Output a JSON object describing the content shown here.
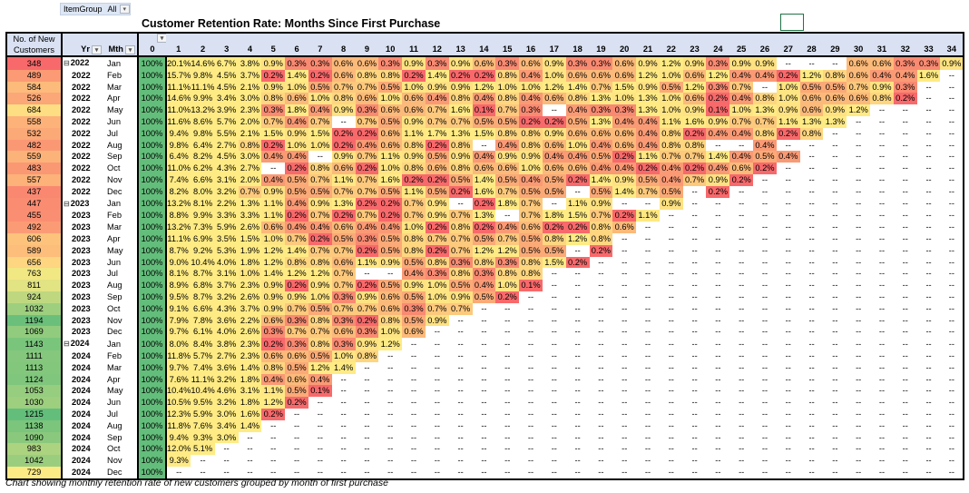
{
  "filter": {
    "label": "ItemGroup",
    "value": "All"
  },
  "title": "Customer Retention Rate: Months Since First Purchase",
  "headers": {
    "customers": "No. of New Customers",
    "yr": "Yr",
    "mth": "Mth",
    "months": [
      "0",
      "1",
      "2",
      "3",
      "4",
      "5",
      "6",
      "7",
      "8",
      "9",
      "10",
      "11",
      "12",
      "13",
      "14",
      "15",
      "16",
      "17",
      "18",
      "19",
      "20",
      "21",
      "22",
      "23",
      "24",
      "25",
      "26",
      "27",
      "28",
      "29",
      "30",
      "31",
      "32",
      "33",
      "34"
    ]
  },
  "empty_cell": "--",
  "colors": {
    "header_bg": "#d9e1f2",
    "month0": "#63be7b",
    "low": "#f8696b",
    "mid": "#ffeb84",
    "high": "#63be7b"
  },
  "rows": [
    {
      "customers": "348",
      "yr": "2022",
      "mth": "Jan",
      "expand": true,
      "values": [
        100,
        20.1,
        14.6,
        6.7,
        3.8,
        0.9,
        0.3,
        0.3,
        0.6,
        0.6,
        0.3,
        0.9,
        0.3,
        0.9,
        0.6,
        0.3,
        0.6,
        0.9,
        0.3,
        0.3,
        0.6,
        0.9,
        1.2,
        0.9,
        0.3,
        0.9,
        0.9,
        null,
        null,
        null,
        0.6,
        0.6,
        0.3,
        0.3,
        0.9
      ]
    },
    {
      "customers": "489",
      "yr": "2022",
      "mth": "Feb",
      "values": [
        100,
        15.7,
        9.8,
        4.5,
        3.7,
        0.2,
        1.4,
        0.2,
        0.6,
        0.8,
        0.8,
        0.2,
        1.4,
        0.2,
        0.2,
        0.8,
        0.4,
        1.0,
        0.6,
        0.6,
        0.6,
        1.2,
        1.0,
        0.6,
        1.2,
        0.4,
        0.4,
        0.2,
        1.2,
        0.8,
        0.6,
        0.4,
        0.4,
        1.6
      ]
    },
    {
      "customers": "584",
      "yr": "2022",
      "mth": "Mar",
      "values": [
        100,
        11.1,
        11.1,
        4.5,
        2.1,
        0.9,
        1.0,
        0.5,
        0.7,
        0.7,
        0.5,
        1.0,
        0.9,
        0.9,
        1.2,
        1.0,
        1.0,
        1.2,
        1.4,
        0.7,
        1.5,
        0.9,
        0.5,
        1.2,
        0.3,
        0.7,
        null,
        1.0,
        0.5,
        0.5,
        0.7,
        0.9,
        0.3
      ]
    },
    {
      "customers": "526",
      "yr": "2022",
      "mth": "Apr",
      "values": [
        100,
        14.6,
        9.9,
        3.4,
        3.0,
        0.8,
        0.6,
        1.0,
        0.8,
        0.6,
        1.0,
        0.6,
        0.4,
        0.8,
        0.4,
        0.8,
        0.4,
        0.6,
        0.8,
        1.3,
        1.0,
        1.3,
        1.0,
        0.6,
        0.2,
        0.4,
        0.8,
        1.0,
        0.6,
        0.6,
        0.6,
        0.8,
        0.2
      ]
    },
    {
      "customers": "684",
      "yr": "2022",
      "mth": "May",
      "values": [
        100,
        11.0,
        13.2,
        3.9,
        2.3,
        0.3,
        1.8,
        0.4,
        0.9,
        0.3,
        0.6,
        0.6,
        0.7,
        1.6,
        0.1,
        0.7,
        0.3,
        null,
        0.4,
        0.3,
        0.3,
        1.3,
        1.0,
        0.9,
        0.1,
        1.0,
        1.3,
        0.9,
        0.6,
        0.9,
        1.2
      ]
    },
    {
      "customers": "558",
      "yr": "2022",
      "mth": "Jun",
      "values": [
        100,
        11.6,
        8.6,
        5.7,
        2.0,
        0.7,
        0.4,
        0.7,
        null,
        0.7,
        0.5,
        0.9,
        0.7,
        0.7,
        0.5,
        0.5,
        0.2,
        0.2,
        0.5,
        1.3,
        0.4,
        0.4,
        1.1,
        1.6,
        0.9,
        0.7,
        0.7,
        1.1,
        1.3,
        1.3
      ]
    },
    {
      "customers": "532",
      "yr": "2022",
      "mth": "Jul",
      "values": [
        100,
        9.4,
        9.8,
        5.5,
        2.1,
        1.5,
        0.9,
        1.5,
        0.2,
        0.2,
        0.6,
        1.1,
        1.7,
        1.3,
        1.5,
        0.8,
        0.8,
        0.9,
        0.6,
        0.6,
        0.6,
        0.4,
        0.8,
        0.2,
        0.4,
        0.4,
        0.8,
        0.2,
        0.8
      ]
    },
    {
      "customers": "482",
      "yr": "2022",
      "mth": "Aug",
      "values": [
        100,
        9.8,
        6.4,
        2.7,
        0.8,
        0.2,
        1.0,
        1.0,
        0.2,
        0.4,
        0.6,
        0.8,
        0.2,
        0.8,
        null,
        0.4,
        0.8,
        0.6,
        1.0,
        0.4,
        0.6,
        0.4,
        0.8,
        0.8,
        null,
        null,
        0.4
      ]
    },
    {
      "customers": "559",
      "yr": "2022",
      "mth": "Sep",
      "values": [
        100,
        6.4,
        8.2,
        4.5,
        3.0,
        0.4,
        0.4,
        null,
        0.9,
        0.7,
        1.1,
        0.9,
        0.5,
        0.9,
        0.4,
        0.9,
        0.9,
        0.4,
        0.4,
        0.5,
        0.2,
        1.1,
        0.7,
        0.7,
        1.4,
        0.4,
        0.5,
        0.4
      ]
    },
    {
      "customers": "483",
      "yr": "2022",
      "mth": "Oct",
      "values": [
        100,
        11.0,
        6.2,
        4.3,
        2.7,
        null,
        0.2,
        0.8,
        0.6,
        0.2,
        1.0,
        0.8,
        0.6,
        0.8,
        0.6,
        0.6,
        1.0,
        0.6,
        0.6,
        0.4,
        0.4,
        0.2,
        0.4,
        0.2,
        0.4,
        0.6,
        0.2
      ]
    },
    {
      "customers": "557",
      "yr": "2022",
      "mth": "Nov",
      "values": [
        100,
        7.4,
        6.6,
        3.1,
        2.0,
        0.4,
        0.5,
        0.7,
        1.1,
        0.7,
        1.6,
        0.2,
        0.2,
        0.5,
        1.4,
        0.5,
        0.4,
        0.5,
        0.2,
        1.4,
        0.9,
        0.5,
        0.4,
        0.7,
        0.9,
        0.2
      ]
    },
    {
      "customers": "437",
      "yr": "2022",
      "mth": "Dec",
      "values": [
        100,
        8.2,
        8.0,
        3.2,
        0.7,
        0.9,
        0.5,
        0.5,
        0.7,
        0.7,
        0.5,
        1.1,
        0.5,
        0.2,
        1.6,
        0.7,
        0.5,
        0.5,
        null,
        0.5,
        1.4,
        0.7,
        0.5,
        null,
        0.2
      ]
    },
    {
      "customers": "447",
      "yr": "2023",
      "mth": "Jan",
      "expand": true,
      "values": [
        100,
        13.2,
        8.1,
        2.2,
        1.3,
        1.1,
        0.4,
        0.9,
        1.3,
        0.2,
        0.2,
        0.7,
        0.9,
        null,
        0.2,
        1.8,
        0.7,
        null,
        1.1,
        0.9,
        null,
        null,
        0.9
      ]
    },
    {
      "customers": "455",
      "yr": "2023",
      "mth": "Feb",
      "values": [
        100,
        8.8,
        9.9,
        3.3,
        3.3,
        1.1,
        0.2,
        0.7,
        0.2,
        0.7,
        0.2,
        0.7,
        0.9,
        0.7,
        1.3,
        null,
        0.7,
        1.8,
        1.5,
        0.7,
        0.2,
        1.1
      ]
    },
    {
      "customers": "492",
      "yr": "2023",
      "mth": "Mar",
      "values": [
        100,
        13.2,
        7.3,
        5.9,
        2.6,
        0.6,
        0.4,
        0.4,
        0.6,
        0.4,
        0.4,
        1.0,
        0.2,
        0.8,
        0.2,
        0.4,
        0.6,
        0.2,
        0.2,
        0.8,
        0.6
      ]
    },
    {
      "customers": "606",
      "yr": "2023",
      "mth": "Apr",
      "values": [
        100,
        11.1,
        6.9,
        3.5,
        1.5,
        1.0,
        0.7,
        0.2,
        0.5,
        0.3,
        0.5,
        0.8,
        0.7,
        0.7,
        0.5,
        0.7,
        0.5,
        0.8,
        1.2,
        0.8
      ]
    },
    {
      "customers": "589",
      "yr": "2023",
      "mth": "May",
      "values": [
        100,
        8.7,
        9.2,
        5.3,
        1.9,
        1.2,
        1.4,
        0.7,
        0.7,
        0.2,
        0.5,
        0.8,
        0.2,
        0.7,
        1.2,
        1.2,
        0.5,
        0.5,
        null,
        0.2
      ]
    },
    {
      "customers": "656",
      "yr": "2023",
      "mth": "Jun",
      "values": [
        100,
        9.0,
        10.4,
        4.0,
        1.8,
        1.2,
        0.8,
        0.8,
        0.6,
        1.1,
        0.9,
        0.5,
        0.8,
        0.3,
        0.8,
        0.3,
        0.8,
        1.5,
        0.2
      ]
    },
    {
      "customers": "763",
      "yr": "2023",
      "mth": "Jul",
      "values": [
        100,
        8.1,
        8.7,
        3.1,
        1.0,
        1.4,
        1.2,
        1.2,
        0.7,
        null,
        null,
        0.4,
        0.3,
        0.8,
        0.3,
        0.8,
        0.8
      ]
    },
    {
      "customers": "811",
      "yr": "2023",
      "mth": "Aug",
      "values": [
        100,
        8.9,
        6.8,
        3.7,
        2.3,
        0.9,
        0.2,
        0.9,
        0.7,
        0.2,
        0.5,
        0.9,
        1.0,
        0.5,
        0.4,
        1.0,
        0.1
      ]
    },
    {
      "customers": "924",
      "yr": "2023",
      "mth": "Sep",
      "values": [
        100,
        9.5,
        8.7,
        3.2,
        2.6,
        0.9,
        0.9,
        1.0,
        0.3,
        0.9,
        0.6,
        0.5,
        1.0,
        0.9,
        0.5,
        0.2
      ]
    },
    {
      "customers": "1032",
      "yr": "2023",
      "mth": "Oct",
      "values": [
        100,
        9.1,
        6.6,
        4.3,
        3.7,
        0.9,
        0.7,
        0.5,
        0.7,
        0.7,
        0.6,
        0.3,
        0.7,
        0.7
      ]
    },
    {
      "customers": "1194",
      "yr": "2023",
      "mth": "Nov",
      "values": [
        100,
        7.9,
        7.8,
        3.6,
        2.2,
        0.6,
        0.3,
        0.8,
        0.3,
        0.2,
        0.8,
        0.5,
        0.9
      ]
    },
    {
      "customers": "1069",
      "yr": "2023",
      "mth": "Dec",
      "values": [
        100,
        9.7,
        6.1,
        4.0,
        2.6,
        0.3,
        0.7,
        0.7,
        0.6,
        0.3,
        1.0,
        0.6
      ]
    },
    {
      "customers": "1143",
      "yr": "2024",
      "mth": "Jan",
      "expand": true,
      "values": [
        100,
        8.0,
        8.4,
        3.8,
        2.3,
        0.2,
        0.3,
        0.8,
        0.3,
        0.9,
        1.2
      ]
    },
    {
      "customers": "1111",
      "yr": "2024",
      "mth": "Feb",
      "values": [
        100,
        11.8,
        5.7,
        2.7,
        2.3,
        0.6,
        0.6,
        0.5,
        1.0,
        0.8
      ]
    },
    {
      "customers": "1113",
      "yr": "2024",
      "mth": "Mar",
      "values": [
        100,
        9.7,
        7.4,
        3.6,
        1.4,
        0.8,
        0.5,
        1.2,
        1.4
      ]
    },
    {
      "customers": "1124",
      "yr": "2024",
      "mth": "Apr",
      "values": [
        100,
        7.6,
        11.1,
        3.2,
        1.8,
        0.4,
        0.6,
        0.4
      ]
    },
    {
      "customers": "1053",
      "yr": "2024",
      "mth": "May",
      "values": [
        100,
        10.4,
        10.4,
        4.6,
        3.1,
        1.1,
        0.5,
        0.1
      ]
    },
    {
      "customers": "1030",
      "yr": "2024",
      "mth": "Jun",
      "values": [
        100,
        10.5,
        9.5,
        3.2,
        1.8,
        1.2,
        0.2
      ]
    },
    {
      "customers": "1215",
      "yr": "2024",
      "mth": "Jul",
      "values": [
        100,
        12.3,
        5.9,
        3.0,
        1.6,
        0.2
      ]
    },
    {
      "customers": "1138",
      "yr": "2024",
      "mth": "Aug",
      "values": [
        100,
        11.8,
        7.6,
        3.4,
        1.4
      ]
    },
    {
      "customers": "1090",
      "yr": "2024",
      "mth": "Sep",
      "values": [
        100,
        9.4,
        9.3,
        3.0
      ]
    },
    {
      "customers": "983",
      "yr": "2024",
      "mth": "Oct",
      "values": [
        100,
        12.0,
        5.1
      ]
    },
    {
      "customers": "1042",
      "yr": "2024",
      "mth": "Nov",
      "values": [
        100,
        9.3
      ]
    },
    {
      "customers": "729",
      "yr": "2024",
      "mth": "Dec",
      "values": [
        100
      ]
    }
  ],
  "caption": "Chart showing monthly retention rate of new  customers grouped by month of first purchase"
}
